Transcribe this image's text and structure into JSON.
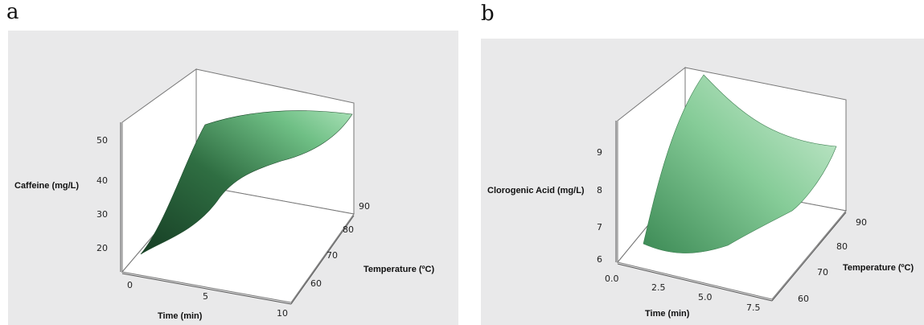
{
  "panels": {
    "a": {
      "label": "a"
    },
    "b": {
      "label": "b"
    }
  },
  "colors": {
    "background": "#e9e9ea",
    "surface_dark": "#1d4a2c",
    "surface_mid": "#3f8a55",
    "surface_light": "#bfe8c8"
  },
  "chart_data": [
    {
      "type": "surface",
      "title": "",
      "xlabel": "Time (min)",
      "ylabel": "Temperature (ºC)",
      "zlabel": "Caffeine (mg/L)",
      "x_ticks": [
        "0",
        "5",
        "10"
      ],
      "y_ticks": [
        "60",
        "70",
        "80",
        "90"
      ],
      "z_ticks": [
        "20",
        "30",
        "40",
        "50"
      ],
      "xlim": [
        0,
        10
      ],
      "ylim": [
        55,
        95
      ],
      "zlim": [
        15,
        55
      ],
      "surface": {
        "x": [
          0,
          2.5,
          5,
          7.5,
          10
        ],
        "y": [
          55,
          65,
          75,
          85,
          95
        ],
        "z": [
          [
            18,
            20,
            22,
            24,
            26
          ],
          [
            30,
            33,
            36,
            38,
            40
          ],
          [
            40,
            43,
            46,
            49,
            51
          ],
          [
            44,
            47,
            50,
            53,
            55
          ],
          [
            45,
            48,
            51,
            54,
            56
          ]
        ]
      }
    },
    {
      "type": "surface",
      "title": "",
      "xlabel": "Time (min)",
      "ylabel": "Temperature (ºC)",
      "zlabel": "Clorogenic Acid (mg/L)",
      "x_ticks": [
        "0.0",
        "2.5",
        "5.0",
        "7.5"
      ],
      "y_ticks": [
        "60",
        "70",
        "80",
        "90"
      ],
      "z_ticks": [
        "6",
        "7",
        "8",
        "9"
      ],
      "xlim": [
        0,
        9
      ],
      "ylim": [
        55,
        95
      ],
      "zlim": [
        5.8,
        10
      ],
      "surface": {
        "x": [
          0,
          2.25,
          4.5,
          6.75,
          9
        ],
        "y": [
          55,
          65,
          75,
          85,
          95
        ],
        "z": [
          [
            6.6,
            6.3,
            6.2,
            6.3,
            6.7
          ],
          [
            7.3,
            6.9,
            6.7,
            6.8,
            7.2
          ],
          [
            8.1,
            7.6,
            7.3,
            7.3,
            7.6
          ],
          [
            8.9,
            8.3,
            7.9,
            7.8,
            8.0
          ],
          [
            9.6,
            9.0,
            8.5,
            8.3,
            8.4
          ]
        ]
      }
    }
  ]
}
